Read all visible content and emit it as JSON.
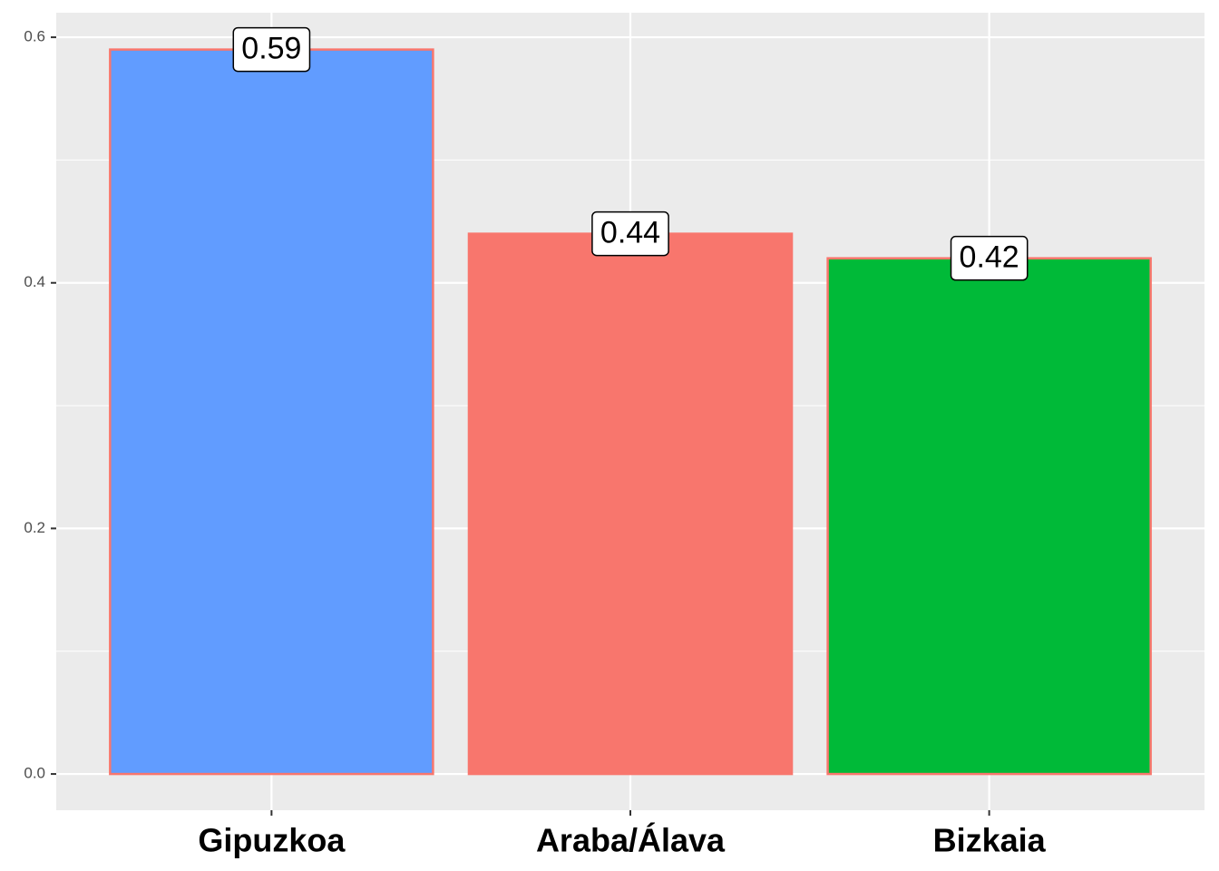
{
  "chart_data": {
    "type": "bar",
    "categories": [
      "Gipuzkoa",
      "Araba/Álava",
      "Bizkaia"
    ],
    "values": [
      0.59,
      0.44,
      0.42
    ],
    "colors": [
      "#619CFF",
      "#F8766D",
      "#00BA38"
    ],
    "outline": "#F8766D",
    "ylim": [
      -0.0295,
      0.62
    ],
    "yticks": [
      {
        "value": 0,
        "label": "0.0"
      },
      0.2,
      0.4,
      0.6
    ],
    "grid": true
  }
}
